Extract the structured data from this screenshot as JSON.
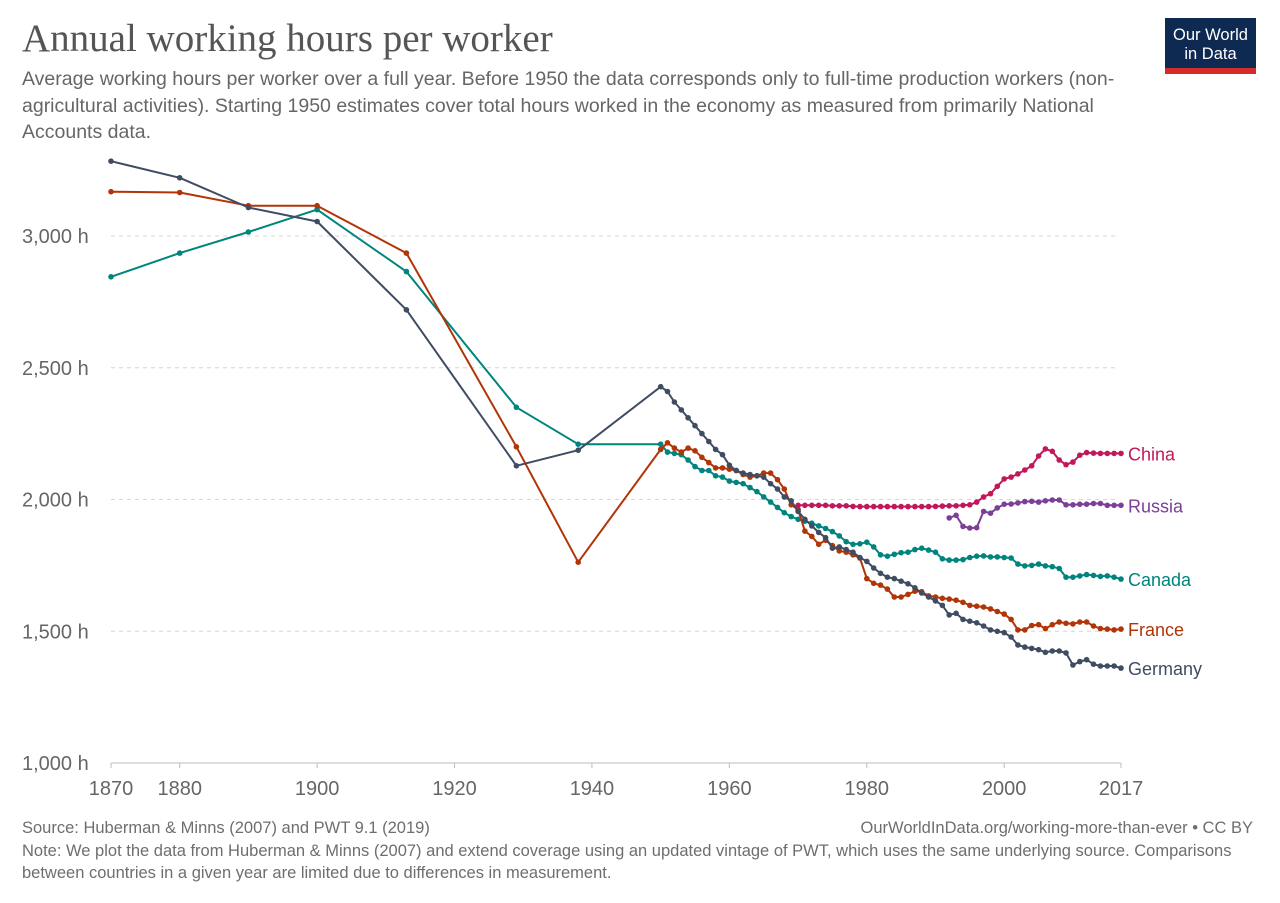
{
  "title": "Annual working hours per worker",
  "subtitle": "Average working hours per worker over a full year. Before 1950 the data corresponds only to full-time production workers (non-agricultural activities). Starting 1950 estimates cover total hours worked in the economy as measured from primarily National Accounts data.",
  "logo": {
    "line1": "Our World",
    "line2": "in Data"
  },
  "footer": {
    "source": "Source: Huberman & Minns (2007) and PWT 9.1 (2019)",
    "credit": "OurWorldInData.org/working-more-than-ever • CC BY",
    "note": "Note: We plot the data from Huberman & Minns (2007) and extend coverage using an updated vintage of PWT, which uses the same underlying source. Comparisons between countries in a given year are limited due to differences in measurement."
  },
  "chart_data": {
    "type": "line",
    "title": "Annual working hours per worker",
    "xlabel": "",
    "ylabel": "",
    "xlim": [
      1870,
      2017
    ],
    "ylim": [
      1000,
      3300
    ],
    "x_ticks": [
      1870,
      1880,
      1900,
      1920,
      1940,
      1960,
      1980,
      2000,
      2017
    ],
    "y_ticks": [
      {
        "value": 1000,
        "label": "1,000 h"
      },
      {
        "value": 1500,
        "label": "1,500 h"
      },
      {
        "value": 2000,
        "label": "2,000 h"
      },
      {
        "value": 2500,
        "label": "2,500 h"
      },
      {
        "value": 3000,
        "label": "3,000 h"
      }
    ],
    "grid": "horizontal dashed",
    "legend": "inline labels at right end of lines",
    "series": [
      {
        "name": "China",
        "color": "#c2185b",
        "x": [
          1970,
          1971,
          1972,
          1973,
          1974,
          1975,
          1976,
          1977,
          1978,
          1979,
          1980,
          1981,
          1982,
          1983,
          1984,
          1985,
          1986,
          1987,
          1988,
          1989,
          1990,
          1991,
          1992,
          1993,
          1994,
          1995,
          1996,
          1997,
          1998,
          1999,
          2000,
          2001,
          2002,
          2003,
          2004,
          2005,
          2006,
          2007,
          2008,
          2009,
          2010,
          2011,
          2012,
          2013,
          2014,
          2015,
          2016,
          2017
        ],
        "y": [
          1978,
          1978,
          1978,
          1978,
          1978,
          1976,
          1976,
          1976,
          1974,
          1973,
          1973,
          1973,
          1973,
          1973,
          1973,
          1973,
          1973,
          1973,
          1973,
          1973,
          1974,
          1975,
          1976,
          1976,
          1978,
          1980,
          1990,
          2010,
          2022,
          2050,
          2078,
          2085,
          2097,
          2112,
          2128,
          2165,
          2192,
          2183,
          2150,
          2132,
          2142,
          2168,
          2178,
          2176,
          2175,
          2175,
          2175,
          2175
        ]
      },
      {
        "name": "Russia",
        "color": "#7b3f97",
        "x": [
          1992,
          1993,
          1994,
          1995,
          1996,
          1997,
          1998,
          1999,
          2000,
          2001,
          2002,
          2003,
          2004,
          2005,
          2006,
          2007,
          2008,
          2009,
          2010,
          2011,
          2012,
          2013,
          2014,
          2015,
          2016,
          2017
        ],
        "y": [
          1930,
          1940,
          1898,
          1892,
          1893,
          1955,
          1948,
          1968,
          1982,
          1983,
          1987,
          1992,
          1993,
          1990,
          1995,
          1998,
          1998,
          1980,
          1980,
          1982,
          1982,
          1985,
          1985,
          1978,
          1978,
          1978
        ]
      },
      {
        "name": "Canada",
        "color": "#00847e",
        "x": [
          1870,
          1880,
          1890,
          1900,
          1913,
          1929,
          1938,
          1950,
          1951,
          1952,
          1953,
          1954,
          1955,
          1956,
          1957,
          1958,
          1959,
          1960,
          1961,
          1962,
          1963,
          1964,
          1965,
          1966,
          1967,
          1968,
          1969,
          1970,
          1971,
          1972,
          1973,
          1974,
          1975,
          1976,
          1977,
          1978,
          1979,
          1980,
          1981,
          1982,
          1983,
          1984,
          1985,
          1986,
          1987,
          1988,
          1989,
          1990,
          1991,
          1992,
          1993,
          1994,
          1995,
          1996,
          1997,
          1998,
          1999,
          2000,
          2001,
          2002,
          2003,
          2004,
          2005,
          2006,
          2007,
          2008,
          2009,
          2010,
          2011,
          2012,
          2013,
          2014,
          2015,
          2016,
          2017
        ],
        "y": [
          2845,
          2935,
          3015,
          3100,
          2865,
          2350,
          2210,
          2210,
          2180,
          2175,
          2170,
          2150,
          2125,
          2110,
          2110,
          2090,
          2085,
          2070,
          2065,
          2060,
          2045,
          2030,
          2010,
          1990,
          1970,
          1950,
          1935,
          1925,
          1918,
          1910,
          1900,
          1890,
          1878,
          1862,
          1840,
          1830,
          1832,
          1838,
          1820,
          1790,
          1785,
          1792,
          1798,
          1800,
          1810,
          1815,
          1808,
          1800,
          1775,
          1770,
          1770,
          1772,
          1780,
          1785,
          1786,
          1782,
          1782,
          1780,
          1778,
          1755,
          1748,
          1750,
          1755,
          1748,
          1745,
          1738,
          1705,
          1705,
          1710,
          1715,
          1712,
          1708,
          1710,
          1705,
          1698
        ]
      },
      {
        "name": "France",
        "color": "#b13507",
        "x": [
          1870,
          1880,
          1890,
          1900,
          1913,
          1929,
          1938,
          1950,
          1951,
          1952,
          1953,
          1954,
          1955,
          1956,
          1957,
          1958,
          1959,
          1960,
          1961,
          1962,
          1963,
          1964,
          1965,
          1966,
          1967,
          1968,
          1969,
          1970,
          1971,
          1972,
          1973,
          1974,
          1975,
          1976,
          1977,
          1978,
          1979,
          1980,
          1981,
          1982,
          1983,
          1984,
          1985,
          1986,
          1987,
          1988,
          1989,
          1990,
          1991,
          1992,
          1993,
          1994,
          1995,
          1996,
          1997,
          1998,
          1999,
          2000,
          2001,
          2002,
          2003,
          2004,
          2005,
          2006,
          2007,
          2008,
          2009,
          2010,
          2011,
          2012,
          2013,
          2014,
          2015,
          2016,
          2017
        ],
        "y": [
          3168,
          3165,
          3115,
          3115,
          2935,
          2200,
          1762,
          2190,
          2215,
          2195,
          2180,
          2195,
          2185,
          2160,
          2140,
          2120,
          2120,
          2115,
          2110,
          2095,
          2085,
          2090,
          2100,
          2100,
          2075,
          2040,
          1980,
          1962,
          1880,
          1860,
          1830,
          1845,
          1825,
          1805,
          1800,
          1790,
          1778,
          1700,
          1682,
          1675,
          1660,
          1630,
          1630,
          1640,
          1652,
          1650,
          1634,
          1630,
          1625,
          1622,
          1618,
          1610,
          1598,
          1595,
          1592,
          1585,
          1575,
          1565,
          1545,
          1505,
          1505,
          1522,
          1525,
          1510,
          1525,
          1535,
          1530,
          1528,
          1535,
          1535,
          1520,
          1510,
          1508,
          1505,
          1508
        ]
      },
      {
        "name": "Germany",
        "color": "#3f4c62",
        "x": [
          1870,
          1880,
          1890,
          1900,
          1913,
          1929,
          1938,
          1950,
          1951,
          1952,
          1953,
          1954,
          1955,
          1956,
          1957,
          1958,
          1959,
          1960,
          1961,
          1962,
          1963,
          1964,
          1965,
          1966,
          1967,
          1968,
          1969,
          1970,
          1971,
          1972,
          1973,
          1974,
          1975,
          1976,
          1977,
          1978,
          1979,
          1980,
          1981,
          1982,
          1983,
          1984,
          1985,
          1986,
          1987,
          1988,
          1989,
          1990,
          1991,
          1992,
          1993,
          1994,
          1995,
          1996,
          1997,
          1998,
          1999,
          2000,
          2001,
          2002,
          2003,
          2004,
          2005,
          2006,
          2007,
          2008,
          2009,
          2010,
          2011,
          2012,
          2013,
          2014,
          2015,
          2016,
          2017
        ],
        "y": [
          3284,
          3221,
          3108,
          3055,
          2720,
          2128,
          2187,
          2428,
          2410,
          2370,
          2340,
          2310,
          2280,
          2250,
          2220,
          2190,
          2170,
          2130,
          2110,
          2100,
          2095,
          2090,
          2085,
          2060,
          2040,
          2010,
          1995,
          1955,
          1925,
          1900,
          1875,
          1855,
          1815,
          1820,
          1810,
          1800,
          1780,
          1765,
          1740,
          1720,
          1705,
          1700,
          1690,
          1680,
          1665,
          1645,
          1630,
          1615,
          1598,
          1562,
          1568,
          1545,
          1538,
          1532,
          1520,
          1505,
          1500,
          1495,
          1478,
          1448,
          1440,
          1435,
          1430,
          1420,
          1425,
          1425,
          1418,
          1372,
          1385,
          1392,
          1375,
          1368,
          1368,
          1368,
          1360
        ]
      }
    ]
  }
}
